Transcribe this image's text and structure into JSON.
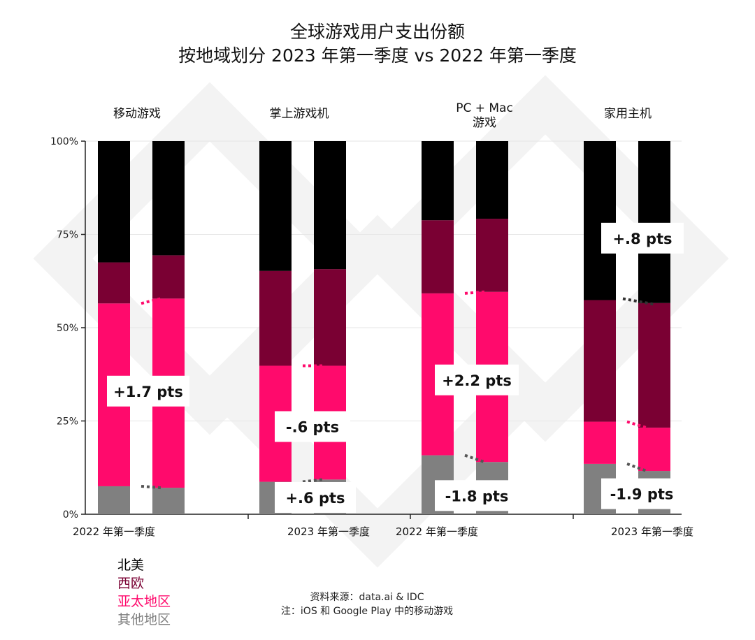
{
  "title": "全球游戏用户支出份额",
  "subtitle": "按地域划分 2023 年第一季度 vs 2022 年第一季度",
  "chart_data": {
    "type": "bar",
    "stacked": true,
    "percent": true,
    "ylim": [
      0,
      100
    ],
    "y_ticks": [
      "0%",
      "25%",
      "50%",
      "75%",
      "100%"
    ],
    "grid": true,
    "legend_position": "bottom-left",
    "groups": [
      {
        "name": "移动游戏",
        "categories": [
          "2022 年第一季度",
          "2023 年第一季度"
        ],
        "series": [
          {
            "name": "其他地区",
            "values": [
              7.5,
              7.1
            ]
          },
          {
            "name": "亚太地区",
            "values": [
              49.0,
              50.7
            ]
          },
          {
            "name": "西欧",
            "values": [
              11.0,
              11.6
            ]
          },
          {
            "name": "北美",
            "values": [
              32.5,
              30.6
            ]
          }
        ]
      },
      {
        "name": "掌上游戏机",
        "categories": [
          "2022 年第一季度",
          "2023 年第一季度"
        ],
        "series": [
          {
            "name": "其他地区",
            "values": [
              8.7,
              9.3
            ]
          },
          {
            "name": "亚太地区",
            "values": [
              31.1,
              30.5
            ]
          },
          {
            "name": "西欧",
            "values": [
              25.4,
              25.9
            ]
          },
          {
            "name": "北美",
            "values": [
              34.8,
              34.3
            ]
          }
        ]
      },
      {
        "name": "PC + Mac 游戏",
        "categories": [
          "2022 年第一季度",
          "2023 年第一季度"
        ],
        "series": [
          {
            "name": "其他地区",
            "values": [
              15.8,
              14.0
            ]
          },
          {
            "name": "亚太地区",
            "values": [
              43.4,
              45.6
            ]
          },
          {
            "name": "西欧",
            "values": [
              19.6,
              19.6
            ]
          },
          {
            "name": "北美",
            "values": [
              21.2,
              20.8
            ]
          }
        ]
      },
      {
        "name": "家用主机",
        "categories": [
          "2022 年第一季度",
          "2023 年第一季度"
        ],
        "series": [
          {
            "name": "其他地区",
            "values": [
              13.5,
              11.6
            ]
          },
          {
            "name": "亚太地区",
            "values": [
              11.3,
              11.6
            ]
          },
          {
            "name": "西欧",
            "values": [
              32.6,
              33.4
            ]
          },
          {
            "name": "北美",
            "values": [
              42.6,
              43.4
            ]
          }
        ]
      }
    ],
    "annotations": [
      {
        "group": 0,
        "text": "+1.7 pts",
        "y": 33
      },
      {
        "group": 1,
        "text": "-.6 pts",
        "y": 23.5
      },
      {
        "group": 1,
        "text": "+.6 pts",
        "y": 4.5
      },
      {
        "group": 2,
        "text": "+2.2 pts",
        "y": 36
      },
      {
        "group": 2,
        "text": "-1.8 pts",
        "y": 5
      },
      {
        "group": 3,
        "text": "+.8 pts",
        "y": 74
      },
      {
        "group": 3,
        "text": "-1.9 pts",
        "y": 5.5
      }
    ],
    "x_labels": [
      "2022 年第一季度",
      "2023 年第一季度",
      "2022 年第一季度",
      "2023 年第一季度"
    ]
  },
  "colors": {
    "北美": "#000000",
    "西欧": "#7a0033",
    "亚太地区": "#ff0a6c",
    "其他地区": "#808080",
    "axis": "#222222",
    "grid": "#e6e6e6",
    "marker_pink": "#ff0a6c",
    "marker_grey": "#555555"
  },
  "legend": {
    "items": [
      {
        "label": "北美",
        "color": "#000000"
      },
      {
        "label": "西欧",
        "color": "#7a0033"
      },
      {
        "label": "亚太地区",
        "color": "#ff0a6c"
      },
      {
        "label": "其他地区",
        "color": "#808080"
      }
    ]
  },
  "source": {
    "line1": "资料来源：data.ai & IDC",
    "line2": "注：iOS 和 Google Play 中的移动游戏"
  }
}
